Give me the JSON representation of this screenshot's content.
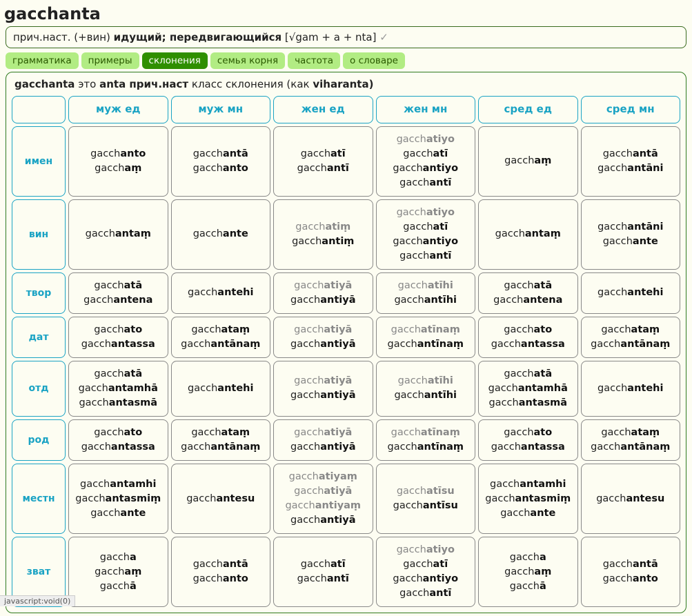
{
  "title": "gacchanta",
  "definition": {
    "prefix": "прич.наст. (+вин) ",
    "bold": "идущий; передвигающийся",
    "etym": " [√gam + a + nta] ",
    "check": "✓"
  },
  "tabs": [
    {
      "id": "grammar",
      "label": "грамматика",
      "active": false
    },
    {
      "id": "examples",
      "label": "примеры",
      "active": false
    },
    {
      "id": "declension",
      "label": "склонения",
      "active": true
    },
    {
      "id": "rootfamily",
      "label": "семья корня",
      "active": false
    },
    {
      "id": "frequency",
      "label": "частота",
      "active": false
    },
    {
      "id": "about",
      "label": "о словаре",
      "active": false
    }
  ],
  "panelHead": {
    "p1": "gacchanta",
    "p2": " это ",
    "p3": "anta прич.наст",
    "p4": " класс склонения (как ",
    "p5": "viharanta)",
    "p6": ")"
  },
  "stem": "gacch",
  "columns": [
    "муж ед",
    "муж мн",
    "жен ед",
    "жен мн",
    "сред ед",
    "сред мн"
  ],
  "rows": [
    {
      "label": "имен",
      "cells": [
        [
          {
            "s": "anto"
          },
          {
            "s": "aṃ"
          }
        ],
        [
          {
            "s": "antā"
          },
          {
            "s": "anto"
          }
        ],
        [
          {
            "s": "atī"
          },
          {
            "s": "antī"
          }
        ],
        [
          {
            "s": "atiyo",
            "g": true
          },
          {
            "s": "atī"
          },
          {
            "s": "antiyo"
          },
          {
            "s": "antī"
          }
        ],
        [
          {
            "s": "aṃ"
          }
        ],
        [
          {
            "s": "antā"
          },
          {
            "s": "antāni"
          }
        ]
      ]
    },
    {
      "label": "вин",
      "cells": [
        [
          {
            "s": "antaṃ"
          }
        ],
        [
          {
            "s": "ante"
          }
        ],
        [
          {
            "s": "atiṃ",
            "g": true
          },
          {
            "s": "antiṃ"
          }
        ],
        [
          {
            "s": "atiyo",
            "g": true
          },
          {
            "s": "atī"
          },
          {
            "s": "antiyo"
          },
          {
            "s": "antī"
          }
        ],
        [
          {
            "s": "antaṃ"
          }
        ],
        [
          {
            "s": "antāni"
          },
          {
            "s": "ante"
          }
        ]
      ]
    },
    {
      "label": "твор",
      "cells": [
        [
          {
            "s": "atā"
          },
          {
            "s": "antena"
          }
        ],
        [
          {
            "s": "antehi"
          }
        ],
        [
          {
            "s": "atiyā",
            "g": true
          },
          {
            "s": "antiyā"
          }
        ],
        [
          {
            "s": "atīhi",
            "g": true
          },
          {
            "s": "antīhi"
          }
        ],
        [
          {
            "s": "atā"
          },
          {
            "s": "antena"
          }
        ],
        [
          {
            "s": "antehi"
          }
        ]
      ]
    },
    {
      "label": "дат",
      "cells": [
        [
          {
            "s": "ato"
          },
          {
            "s": "antassa"
          }
        ],
        [
          {
            "s": "ataṃ"
          },
          {
            "s": "antānaṃ"
          }
        ],
        [
          {
            "s": "atiyā",
            "g": true
          },
          {
            "s": "antiyā"
          }
        ],
        [
          {
            "s": "atīnaṃ",
            "g": true
          },
          {
            "s": "antīnaṃ"
          }
        ],
        [
          {
            "s": "ato"
          },
          {
            "s": "antassa"
          }
        ],
        [
          {
            "s": "ataṃ"
          },
          {
            "s": "antānaṃ"
          }
        ]
      ]
    },
    {
      "label": "отд",
      "cells": [
        [
          {
            "s": "atā"
          },
          {
            "s": "antamhā"
          },
          {
            "s": "antasmā"
          }
        ],
        [
          {
            "s": "antehi"
          }
        ],
        [
          {
            "s": "atiyā",
            "g": true
          },
          {
            "s": "antiyā"
          }
        ],
        [
          {
            "s": "atīhi",
            "g": true
          },
          {
            "s": "antīhi"
          }
        ],
        [
          {
            "s": "atā"
          },
          {
            "s": "antamhā"
          },
          {
            "s": "antasmā"
          }
        ],
        [
          {
            "s": "antehi"
          }
        ]
      ]
    },
    {
      "label": "род",
      "cells": [
        [
          {
            "s": "ato"
          },
          {
            "s": "antassa"
          }
        ],
        [
          {
            "s": "ataṃ"
          },
          {
            "s": "antānaṃ"
          }
        ],
        [
          {
            "s": "atiyā",
            "g": true
          },
          {
            "s": "antiyā"
          }
        ],
        [
          {
            "s": "atīnaṃ",
            "g": true
          },
          {
            "s": "antīnaṃ"
          }
        ],
        [
          {
            "s": "ato"
          },
          {
            "s": "antassa"
          }
        ],
        [
          {
            "s": "ataṃ"
          },
          {
            "s": "antānaṃ"
          }
        ]
      ]
    },
    {
      "label": "местн",
      "cells": [
        [
          {
            "s": "antamhi"
          },
          {
            "s": "antasmiṃ"
          },
          {
            "s": "ante"
          }
        ],
        [
          {
            "s": "antesu"
          }
        ],
        [
          {
            "s": "atiyaṃ",
            "g": true
          },
          {
            "s": "atiyā",
            "g": true
          },
          {
            "s": "antiyaṃ",
            "g": true
          },
          {
            "s": "antiyā"
          }
        ],
        [
          {
            "s": "atīsu",
            "g": true
          },
          {
            "s": "antīsu"
          }
        ],
        [
          {
            "s": "antamhi"
          },
          {
            "s": "antasmiṃ"
          },
          {
            "s": "ante"
          }
        ],
        [
          {
            "s": "antesu"
          }
        ]
      ]
    },
    {
      "label": "зват",
      "cells": [
        [
          {
            "s": "a"
          },
          {
            "s": "aṃ"
          },
          {
            "s": "ā"
          }
        ],
        [
          {
            "s": "antā"
          },
          {
            "s": "anto"
          }
        ],
        [
          {
            "s": "atī"
          },
          {
            "s": "antī"
          }
        ],
        [
          {
            "s": "atiyo",
            "g": true
          },
          {
            "s": "atī"
          },
          {
            "s": "antiyo"
          },
          {
            "s": "antī"
          }
        ],
        [
          {
            "s": "a"
          },
          {
            "s": "aṃ"
          },
          {
            "s": "ā"
          }
        ],
        [
          {
            "s": "antā"
          },
          {
            "s": "anto"
          }
        ]
      ]
    }
  ],
  "footnote": "javascript:void(0)",
  "colors": {
    "accent": "#1aa3c4",
    "tabBg": "#b2ec83",
    "tabActive": "#2f8f00",
    "border": "#888",
    "bg": "#fdfdf2"
  }
}
